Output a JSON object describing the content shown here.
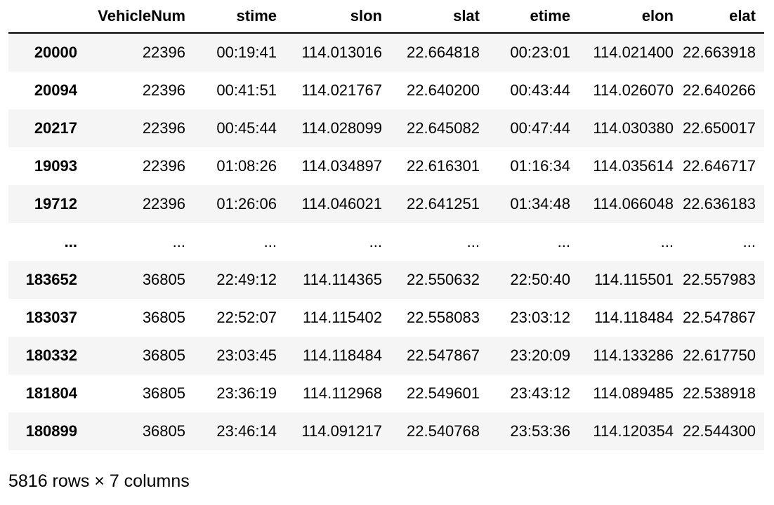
{
  "table": {
    "index_header": "",
    "columns": [
      "VehicleNum",
      "stime",
      "slon",
      "slat",
      "etime",
      "elon",
      "elat"
    ],
    "rows": [
      {
        "index": "20000",
        "cells": [
          "22396",
          "00:19:41",
          "114.013016",
          "22.664818",
          "00:23:01",
          "114.021400",
          "22.663918"
        ]
      },
      {
        "index": "20094",
        "cells": [
          "22396",
          "00:41:51",
          "114.021767",
          "22.640200",
          "00:43:44",
          "114.026070",
          "22.640266"
        ]
      },
      {
        "index": "20217",
        "cells": [
          "22396",
          "00:45:44",
          "114.028099",
          "22.645082",
          "00:47:44",
          "114.030380",
          "22.650017"
        ]
      },
      {
        "index": "19093",
        "cells": [
          "22396",
          "01:08:26",
          "114.034897",
          "22.616301",
          "01:16:34",
          "114.035614",
          "22.646717"
        ]
      },
      {
        "index": "19712",
        "cells": [
          "22396",
          "01:26:06",
          "114.046021",
          "22.641251",
          "01:34:48",
          "114.066048",
          "22.636183"
        ]
      },
      {
        "index": "...",
        "cells": [
          "...",
          "...",
          "...",
          "...",
          "...",
          "...",
          "..."
        ],
        "ellipsis": true
      },
      {
        "index": "183652",
        "cells": [
          "36805",
          "22:49:12",
          "114.114365",
          "22.550632",
          "22:50:40",
          "114.115501",
          "22.557983"
        ]
      },
      {
        "index": "183037",
        "cells": [
          "36805",
          "22:52:07",
          "114.115402",
          "22.558083",
          "23:03:12",
          "114.118484",
          "22.547867"
        ]
      },
      {
        "index": "180332",
        "cells": [
          "36805",
          "23:03:45",
          "114.118484",
          "22.547867",
          "23:20:09",
          "114.133286",
          "22.617750"
        ]
      },
      {
        "index": "181804",
        "cells": [
          "36805",
          "23:36:19",
          "114.112968",
          "22.549601",
          "23:43:12",
          "114.089485",
          "22.538918"
        ]
      },
      {
        "index": "180899",
        "cells": [
          "36805",
          "23:46:14",
          "114.091217",
          "22.540768",
          "23:53:36",
          "114.120354",
          "22.544300"
        ]
      }
    ]
  },
  "footer": {
    "shape_text": "5816 rows × 7 columns"
  }
}
